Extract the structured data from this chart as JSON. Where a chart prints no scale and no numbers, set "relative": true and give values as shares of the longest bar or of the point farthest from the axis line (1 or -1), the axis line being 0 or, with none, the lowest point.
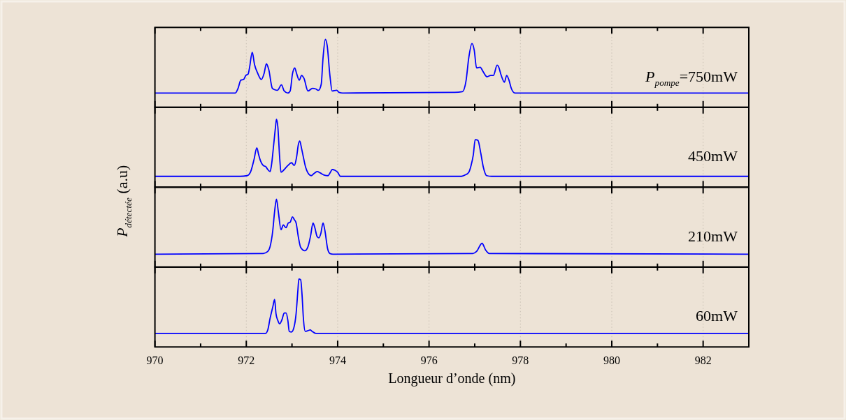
{
  "chart_data": [
    {
      "type": "line",
      "color": "#0000ff",
      "relative": true,
      "xlim": [
        970,
        983
      ],
      "grid": "x",
      "tick_labels": false,
      "xticks": [
        970,
        {
          "value": 971,
          "label": null
        },
        972,
        {
          "value": 973,
          "label": null
        },
        974,
        {
          "value": 975,
          "label": null
        },
        976,
        {
          "value": 977,
          "label": null
        },
        978,
        {
          "value": 979,
          "label": null
        },
        980,
        {
          "value": 981,
          "label": null
        },
        982
      ],
      "annotations": [
        "P$_{pompe}$=750mW"
      ],
      "x": [
        970,
        971.76,
        971.82,
        971.88,
        971.94,
        971.99,
        972.04,
        972.07,
        972.13,
        972.18,
        972.25,
        972.33,
        972.39,
        972.44,
        972.49,
        972.57,
        972.62,
        972.68,
        972.77,
        972.83,
        972.91,
        972.96,
        973.01,
        973.06,
        973.1,
        973.16,
        973.21,
        973.26,
        973.35,
        973.45,
        973.52,
        973.58,
        973.64,
        973.68,
        973.73,
        973.77,
        973.83,
        973.88,
        973.98,
        974.03,
        974.11,
        976.56,
        976.73,
        976.81,
        976.87,
        976.94,
        976.99,
        977.04,
        977.12,
        977.18,
        977.27,
        977.35,
        977.41,
        977.49,
        977.52,
        977.58,
        977.65,
        977.7,
        977.75,
        977.8,
        977.88,
        978.09,
        983
      ],
      "values": [
        0.21,
        0.21,
        0.28,
        0.4,
        0.41,
        0.47,
        0.49,
        0.58,
        0.81,
        0.63,
        0.5,
        0.41,
        0.5,
        0.64,
        0.56,
        0.28,
        0.26,
        0.25,
        0.33,
        0.24,
        0.21,
        0.24,
        0.49,
        0.58,
        0.5,
        0.4,
        0.47,
        0.43,
        0.24,
        0.28,
        0.27,
        0.25,
        0.34,
        0.73,
        1,
        0.91,
        0.47,
        0.24,
        0.25,
        0.22,
        0.21,
        0.22,
        0.23,
        0.39,
        0.73,
        0.94,
        0.84,
        0.58,
        0.59,
        0.53,
        0.45,
        0.47,
        0.47,
        0.62,
        0.6,
        0.47,
        0.37,
        0.47,
        0.4,
        0.28,
        0.21,
        0.21,
        0.21
      ]
    },
    {
      "type": "line",
      "color": "#0000ff",
      "relative": true,
      "xlim": [
        970,
        983
      ],
      "grid": "x",
      "tick_labels": false,
      "xticks": [
        970,
        {
          "value": 971,
          "label": null
        },
        972,
        {
          "value": 973,
          "label": null
        },
        974,
        {
          "value": 975,
          "label": null
        },
        976,
        {
          "value": 977,
          "label": null
        },
        978,
        {
          "value": 979,
          "label": null
        },
        980,
        {
          "value": 981,
          "label": null
        },
        982
      ],
      "annotations": [
        "450mW"
      ],
      "x": [
        970,
        971.86,
        972.02,
        972.09,
        972.17,
        972.23,
        972.27,
        972.31,
        972.37,
        972.43,
        972.47,
        972.52,
        972.55,
        972.6,
        972.64,
        972.66,
        972.69,
        972.73,
        972.76,
        972.83,
        972.91,
        972.99,
        973.05,
        973.1,
        973.14,
        973.17,
        973.21,
        973.25,
        973.3,
        973.35,
        973.42,
        973.48,
        973.55,
        973.62,
        973.7,
        973.79,
        973.84,
        973.88,
        973.94,
        974.0,
        974.06,
        976.71,
        976.79,
        976.87,
        976.92,
        976.97,
        977.01,
        977.07,
        977.13,
        977.19,
        977.26,
        977.37,
        983
      ],
      "values": [
        0.16,
        0.16,
        0.17,
        0.22,
        0.41,
        0.58,
        0.48,
        0.39,
        0.32,
        0.3,
        0.26,
        0.23,
        0.32,
        0.63,
        0.89,
        1,
        0.89,
        0.44,
        0.22,
        0.26,
        0.32,
        0.36,
        0.32,
        0.44,
        0.63,
        0.68,
        0.57,
        0.44,
        0.29,
        0.21,
        0.17,
        0.2,
        0.23,
        0.21,
        0.18,
        0.17,
        0.22,
        0.26,
        0.25,
        0.22,
        0.16,
        0.16,
        0.18,
        0.22,
        0.32,
        0.48,
        0.7,
        0.69,
        0.51,
        0.29,
        0.17,
        0.16,
        0.16
      ]
    },
    {
      "type": "line",
      "color": "#0000ff",
      "relative": true,
      "xlim": [
        970,
        983
      ],
      "grid": "x",
      "tick_labels": false,
      "xticks": [
        970,
        {
          "value": 971,
          "label": null
        },
        972,
        {
          "value": 973,
          "label": null
        },
        974,
        {
          "value": 975,
          "label": null
        },
        976,
        {
          "value": 977,
          "label": null
        },
        978,
        {
          "value": 979,
          "label": null
        },
        980,
        {
          "value": 981,
          "label": null
        },
        982
      ],
      "ylabel": "P$_{détectée}$ (a.u)",
      "annotations": [
        "210mW"
      ],
      "x": [
        970,
        972.37,
        972.47,
        972.52,
        972.58,
        972.62,
        972.66,
        972.7,
        972.76,
        972.81,
        972.87,
        972.92,
        972.96,
        973.01,
        973.05,
        973.09,
        973.14,
        973.19,
        973.28,
        973.35,
        973.41,
        973.46,
        973.5,
        973.55,
        973.59,
        973.63,
        973.68,
        973.72,
        973.78,
        973.83,
        973.9,
        976.96,
        977.04,
        977.16,
        977.24,
        977.32,
        983
      ],
      "values": [
        0.19,
        0.2,
        0.23,
        0.3,
        0.54,
        0.82,
        1,
        0.82,
        0.55,
        0.62,
        0.58,
        0.65,
        0.66,
        0.74,
        0.7,
        0.65,
        0.44,
        0.29,
        0.24,
        0.3,
        0.47,
        0.65,
        0.58,
        0.45,
        0.43,
        0.49,
        0.65,
        0.54,
        0.27,
        0.2,
        0.19,
        0.2,
        0.23,
        0.35,
        0.25,
        0.2,
        0.19
      ]
    },
    {
      "type": "line",
      "color": "#0000ff",
      "relative": true,
      "xlim": [
        970,
        983
      ],
      "grid": "x",
      "tick_labels": "x",
      "xticks": [
        970,
        {
          "value": 971,
          "label": null
        },
        972,
        {
          "value": 973,
          "label": null
        },
        974,
        {
          "value": 975,
          "label": null
        },
        976,
        {
          "value": 977,
          "label": null
        },
        978,
        {
          "value": 979,
          "label": null
        },
        980,
        {
          "value": 981,
          "label": null
        },
        982
      ],
      "xlabel": "Longueur d’onde (nm)",
      "annotations": [
        "60mW"
      ],
      "x": [
        970,
        972.42,
        972.47,
        972.52,
        972.58,
        972.62,
        972.65,
        972.69,
        972.73,
        972.78,
        972.83,
        972.87,
        972.91,
        972.94,
        972.99,
        973.04,
        973.09,
        973.13,
        973.15,
        973.19,
        973.22,
        973.25,
        973.29,
        973.35,
        973.4,
        973.44,
        973.52,
        973.7,
        983
      ],
      "values": [
        0.2,
        0.2,
        0.25,
        0.42,
        0.59,
        0.7,
        0.49,
        0.39,
        0.34,
        0.4,
        0.5,
        0.5,
        0.39,
        0.23,
        0.22,
        0.28,
        0.49,
        0.84,
        1,
        0.99,
        0.77,
        0.42,
        0.23,
        0.24,
        0.25,
        0.23,
        0.2,
        0.2,
        0.2
      ]
    }
  ]
}
